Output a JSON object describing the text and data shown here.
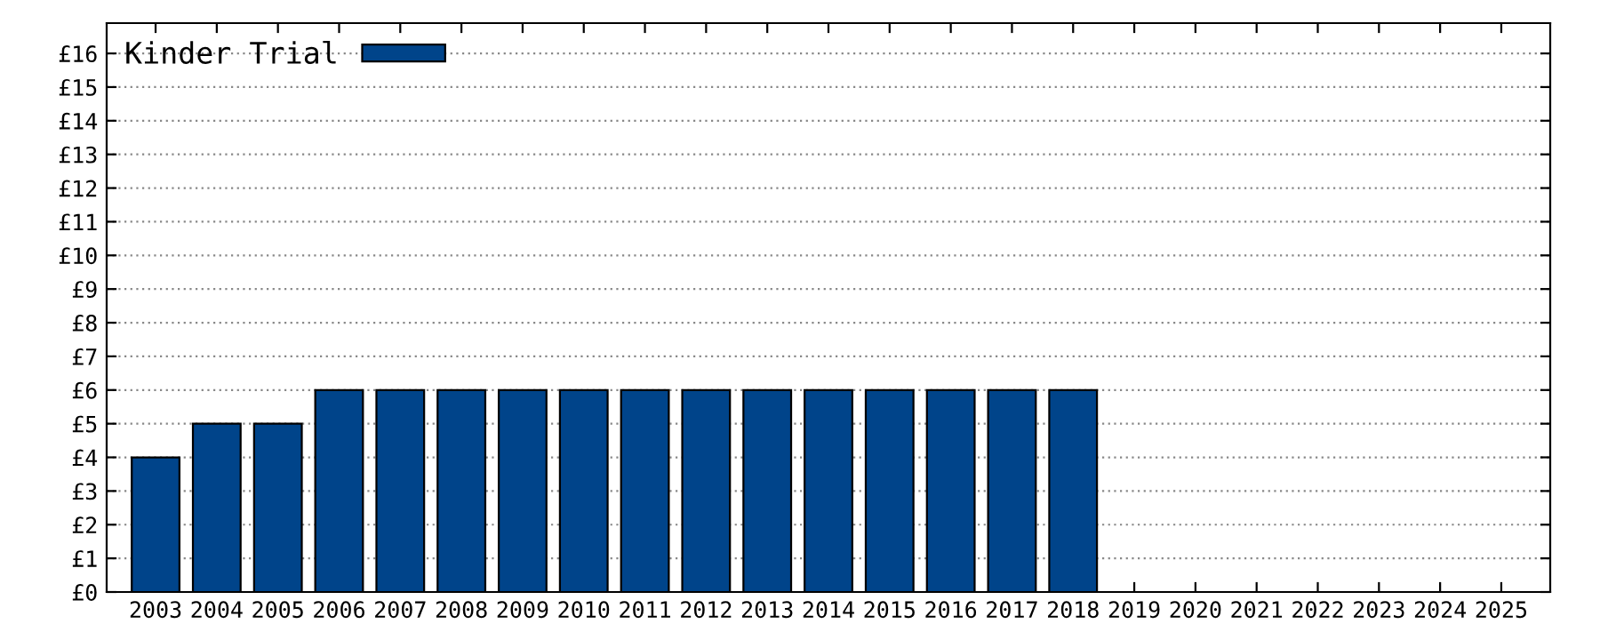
{
  "chart_data": {
    "type": "bar",
    "categories": [
      "2003",
      "2004",
      "2005",
      "2006",
      "2007",
      "2008",
      "2009",
      "2010",
      "2011",
      "2012",
      "2013",
      "2014",
      "2015",
      "2016",
      "2017",
      "2018",
      "2019",
      "2020",
      "2021",
      "2022",
      "2023",
      "2024",
      "2025"
    ],
    "series": [
      {
        "name": "Kinder Trial",
        "color": "#00448a",
        "values": [
          4,
          5,
          5,
          6,
          6,
          6,
          6,
          6,
          6,
          6,
          6,
          6,
          6,
          6,
          6,
          6,
          null,
          null,
          null,
          null,
          null,
          null,
          null
        ]
      }
    ],
    "ylim": [
      0,
      16.9
    ],
    "yticks": [
      {
        "value": 0,
        "label": "£0"
      },
      {
        "value": 1,
        "label": "£1"
      },
      {
        "value": 2,
        "label": "£2"
      },
      {
        "value": 3,
        "label": "£3"
      },
      {
        "value": 4,
        "label": "£4"
      },
      {
        "value": 5,
        "label": "£5"
      },
      {
        "value": 6,
        "label": "£6"
      },
      {
        "value": 7,
        "label": "£7"
      },
      {
        "value": 8,
        "label": "£8"
      },
      {
        "value": 9,
        "label": "£9"
      },
      {
        "value": 10,
        "label": "£10"
      },
      {
        "value": 11,
        "label": "£11"
      },
      {
        "value": 12,
        "label": "£12"
      },
      {
        "value": 13,
        "label": "£13"
      },
      {
        "value": 14,
        "label": "£14"
      },
      {
        "value": 15,
        "label": "£15"
      },
      {
        "value": 16,
        "label": "£16"
      }
    ],
    "grid": "y",
    "legend": "top left"
  }
}
